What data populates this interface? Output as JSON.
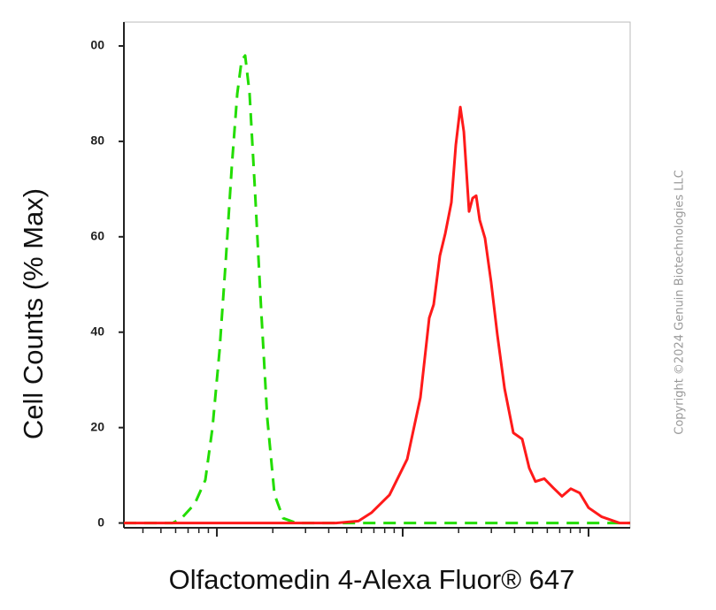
{
  "chart_data": {
    "type": "line",
    "x_label": "Olfactomedin 4-Alexa Fluor® 647",
    "y_label": "Cell Counts (% Max)",
    "watermark": "Copyright ©2024 Genuin Biotechnologies LLC",
    "xscale": "log",
    "xlim": [
      31.6,
      16750
    ],
    "xticks": [
      100,
      1000,
      10000
    ],
    "ylim": [
      -1,
      105
    ],
    "yticks": [
      0,
      20,
      40,
      60,
      80,
      {
        "value": 100,
        "label": "00"
      }
    ],
    "series": [
      {
        "color": "#22dd00",
        "dashed": true,
        "x": [
          31.6,
          57.8,
          64.5,
          76.0,
          86.7,
          94.7,
          103.3,
          111.6,
          120.5,
          128.7,
          135.9,
          142.0,
          150.0,
          160.2,
          172.9,
          186.7,
          204.0,
          227.6,
          268.3,
          16750
        ],
        "values": [
          0,
          0,
          1,
          4,
          9,
          20,
          36,
          55,
          75,
          90,
          97,
          98,
          90,
          70,
          45,
          22,
          6,
          1,
          0,
          0
        ]
      },
      {
        "color": "#ff1a1a",
        "dashed": false,
        "x": [
          31.6,
          439.5,
          578,
          681,
          849,
          1057,
          1245,
          1390,
          1468,
          1585,
          1694,
          1828,
          1931,
          2042,
          2133,
          2276,
          2378,
          2485,
          2596,
          2773,
          2992,
          3234,
          3532,
          3937,
          4394,
          4797,
          5179,
          5781,
          6452,
          7201,
          8036,
          8969,
          10000,
          11780,
          14680,
          16750
        ],
        "values": [
          0,
          0,
          0.4,
          2.2,
          5.9,
          13.4,
          26.3,
          43,
          45.8,
          56,
          60.7,
          67.2,
          79.2,
          87.2,
          82,
          65.3,
          68.1,
          68.6,
          63.5,
          59.7,
          50.5,
          39.4,
          28.2,
          18.9,
          17.6,
          11.5,
          8.7,
          9.3,
          7.4,
          5.6,
          7.2,
          6.3,
          3.2,
          1.3,
          0,
          0
        ]
      }
    ]
  }
}
